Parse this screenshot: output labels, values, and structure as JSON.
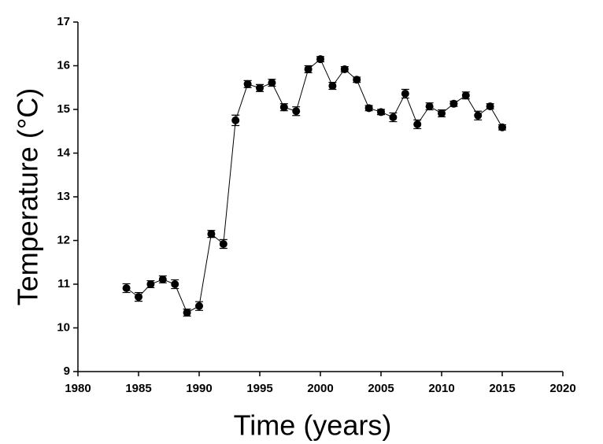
{
  "chart_data": {
    "type": "line",
    "x_label": "Time (years)",
    "y_label": "Temperature (°C)",
    "x": [
      1984,
      1985,
      1986,
      1987,
      1988,
      1989,
      1990,
      1991,
      1992,
      1993,
      1994,
      1995,
      1996,
      1997,
      1998,
      1999,
      2000,
      2001,
      2002,
      2003,
      2004,
      2005,
      2006,
      2007,
      2008,
      2009,
      2010,
      2011,
      2012,
      2013,
      2014,
      2015
    ],
    "series": [
      {
        "name": "Temperature",
        "color": "#000000",
        "values": [
          10.91,
          10.71,
          11.0,
          11.11,
          11.0,
          10.35,
          10.5,
          12.15,
          11.92,
          14.75,
          15.58,
          15.49,
          15.61,
          15.05,
          14.96,
          15.92,
          16.15,
          15.54,
          15.92,
          15.68,
          15.03,
          14.94,
          14.82,
          15.36,
          14.66,
          15.07,
          14.91,
          15.13,
          15.32,
          14.86,
          15.07,
          14.59
        ],
        "errors": [
          0.1,
          0.1,
          0.08,
          0.08,
          0.1,
          0.08,
          0.1,
          0.08,
          0.1,
          0.12,
          0.08,
          0.08,
          0.08,
          0.08,
          0.1,
          0.08,
          0.06,
          0.08,
          0.06,
          0.06,
          0.06,
          0.06,
          0.1,
          0.1,
          0.1,
          0.08,
          0.08,
          0.06,
          0.08,
          0.1,
          0.06,
          0.06
        ]
      }
    ],
    "xlim": [
      1980,
      2020
    ],
    "xticks": [
      1980,
      1985,
      1990,
      1995,
      2000,
      2005,
      2010,
      2015,
      2020
    ],
    "ylim": [
      9,
      17
    ],
    "yticks": [
      9,
      10,
      11,
      12,
      13,
      14,
      15,
      16,
      17
    ],
    "grid": false
  }
}
